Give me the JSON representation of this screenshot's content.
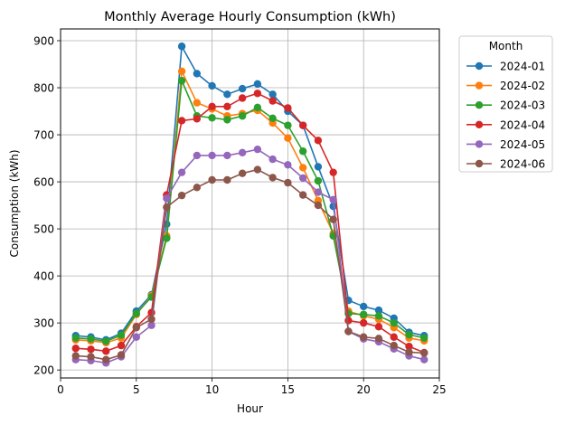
{
  "chart_data": {
    "type": "line",
    "title": "Monthly Average Hourly Consumption (kWh)",
    "xlabel": "Hour",
    "ylabel": "Consumption (kWh)",
    "xlim": [
      0,
      25
    ],
    "ylim": [
      183,
      925
    ],
    "xticks": [
      0,
      5,
      10,
      15,
      20,
      25
    ],
    "yticks": [
      200,
      300,
      400,
      500,
      600,
      700,
      800,
      900
    ],
    "grid": true,
    "legend": {
      "title": "Month",
      "placement": "outside-right"
    },
    "x": [
      1,
      2,
      3,
      4,
      5,
      6,
      7,
      8,
      9,
      10,
      11,
      12,
      13,
      14,
      15,
      16,
      17,
      18,
      19,
      20,
      21,
      22,
      23,
      24
    ],
    "series": [
      {
        "name": "2024-01",
        "color": "#1f77b4",
        "values": [
          273,
          270,
          264,
          278,
          325,
          360,
          510,
          888,
          830,
          804,
          786,
          798,
          808,
          786,
          750,
          720,
          632,
          548,
          348,
          335,
          327,
          310,
          280,
          273
        ]
      },
      {
        "name": "2024-02",
        "color": "#ff7f0e",
        "values": [
          264,
          262,
          258,
          268,
          318,
          358,
          485,
          835,
          768,
          755,
          740,
          745,
          752,
          725,
          693,
          630,
          560,
          490,
          325,
          315,
          308,
          290,
          268,
          262
        ]
      },
      {
        "name": "2024-03",
        "color": "#2ca02c",
        "values": [
          268,
          266,
          261,
          274,
          320,
          355,
          480,
          815,
          740,
          736,
          732,
          740,
          758,
          735,
          720,
          665,
          602,
          485,
          320,
          318,
          315,
          300,
          275,
          268
        ]
      },
      {
        "name": "2024-04",
        "color": "#d62728",
        "values": [
          246,
          244,
          240,
          252,
          292,
          322,
          572,
          730,
          734,
          760,
          760,
          778,
          788,
          772,
          757,
          720,
          688,
          620,
          305,
          300,
          292,
          270,
          250,
          237
        ]
      },
      {
        "name": "2024-05",
        "color": "#9467bd",
        "values": [
          222,
          220,
          215,
          228,
          270,
          295,
          565,
          620,
          656,
          656,
          656,
          662,
          669,
          648,
          636,
          608,
          578,
          562,
          282,
          266,
          260,
          245,
          230,
          222
        ]
      },
      {
        "name": "2024-06",
        "color": "#8c564b",
        "values": [
          230,
          228,
          222,
          232,
          290,
          308,
          546,
          571,
          588,
          604,
          604,
          618,
          626,
          609,
          598,
          572,
          550,
          520,
          282,
          270,
          267,
          252,
          238,
          236
        ]
      }
    ]
  }
}
